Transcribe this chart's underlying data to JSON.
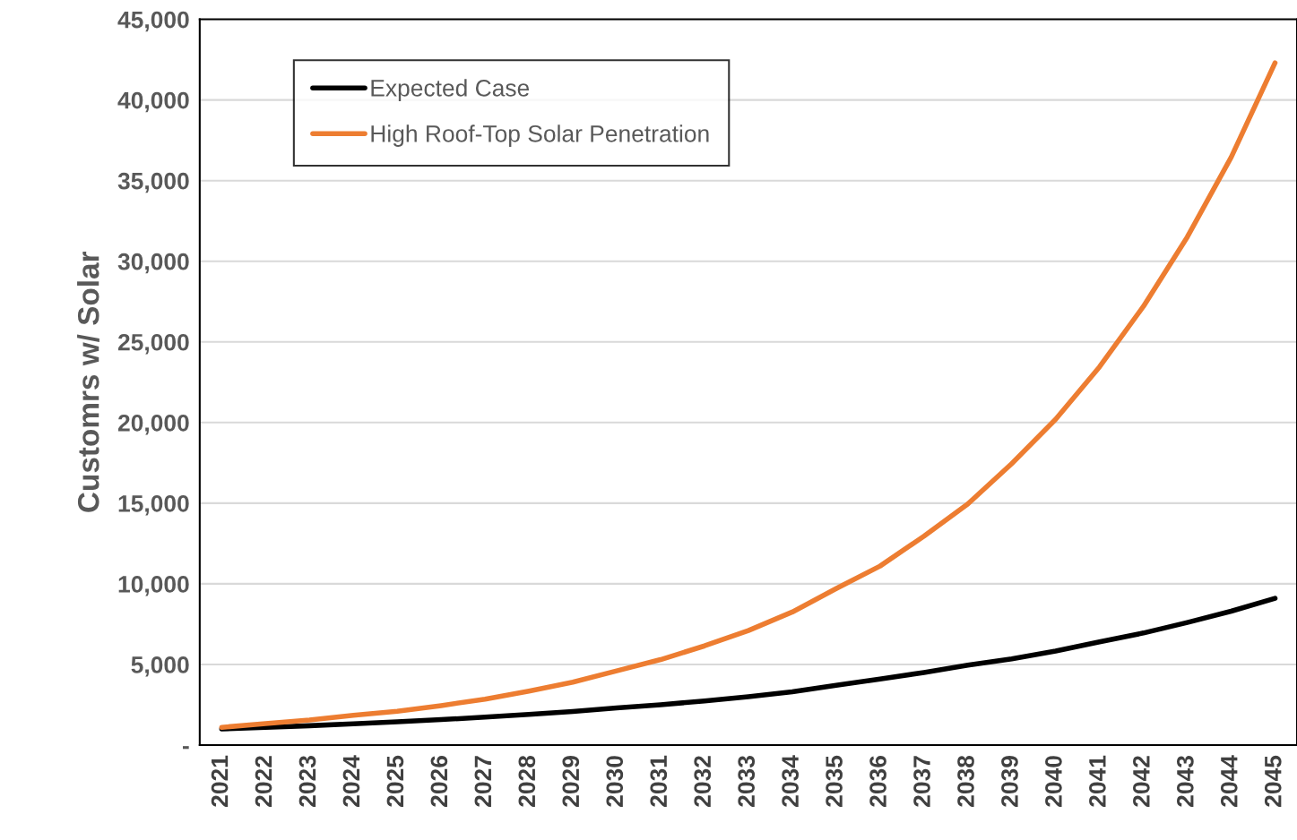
{
  "chart_data": {
    "type": "line",
    "ylabel": "Customrs w/ Solar",
    "categories": [
      "2021",
      "2022",
      "2023",
      "2024",
      "2025",
      "2026",
      "2027",
      "2028",
      "2029",
      "2030",
      "2031",
      "2032",
      "2033",
      "2034",
      "2035",
      "2036",
      "2037",
      "2038",
      "2039",
      "2040",
      "2041",
      "2042",
      "2043",
      "2044",
      "2045"
    ],
    "series": [
      {
        "name": "Expected Case",
        "color": "#000000",
        "values": [
          1000,
          1100,
          1200,
          1320,
          1440,
          1580,
          1730,
          1900,
          2080,
          2300,
          2500,
          2740,
          3000,
          3300,
          3700,
          4100,
          4500,
          4950,
          5350,
          5830,
          6400,
          6950,
          7600,
          8300,
          9100
        ]
      },
      {
        "name": "High Roof-Top Solar Penetration",
        "color": "#ed7d31",
        "values": [
          1100,
          1330,
          1550,
          1850,
          2100,
          2450,
          2850,
          3350,
          3900,
          4600,
          5300,
          6150,
          7100,
          8250,
          9700,
          11100,
          12950,
          14950,
          17450,
          20200,
          23450,
          27200,
          31500,
          36450,
          42300
        ]
      }
    ],
    "ylim": [
      0,
      45000
    ],
    "yticks": [
      {
        "value": 0,
        "label": "-"
      },
      {
        "value": 5000,
        "label": "5,000"
      },
      {
        "value": 10000,
        "label": "10,000"
      },
      {
        "value": 15000,
        "label": "15,000"
      },
      {
        "value": 20000,
        "label": "20,000"
      },
      {
        "value": 25000,
        "label": "25,000"
      },
      {
        "value": 30000,
        "label": "30,000"
      },
      {
        "value": 35000,
        "label": "35,000"
      },
      {
        "value": 40000,
        "label": "40,000"
      },
      {
        "value": 45000,
        "label": "45,000"
      }
    ],
    "grid": "y",
    "legend": "top left",
    "marker": "none",
    "line_style": "solid"
  }
}
